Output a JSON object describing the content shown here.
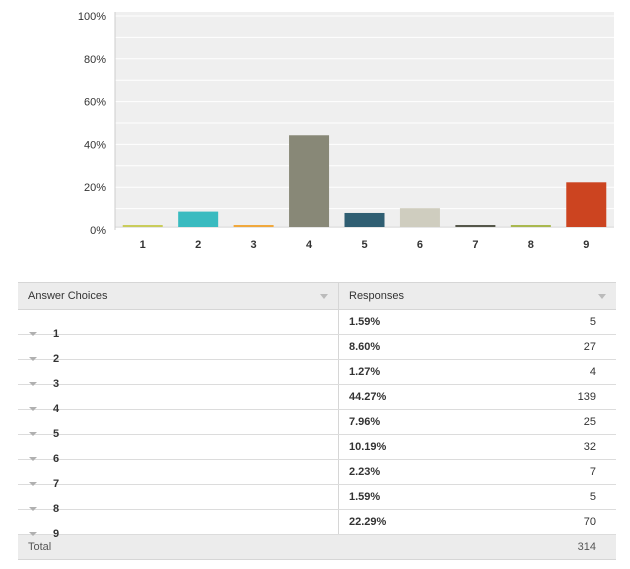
{
  "chart_data": {
    "type": "bar",
    "categories": [
      "1",
      "2",
      "3",
      "4",
      "5",
      "6",
      "7",
      "8",
      "9"
    ],
    "values": [
      1.59,
      8.6,
      1.27,
      44.27,
      7.96,
      10.19,
      2.23,
      1.59,
      22.29
    ],
    "colors": [
      "#c9cc5a",
      "#39bbc0",
      "#f0a83c",
      "#888877",
      "#2f5e72",
      "#cfcdbf",
      "#55574a",
      "#a9b84e",
      "#cc4420"
    ],
    "ylim": [
      0,
      100
    ],
    "yticks": [
      "0%",
      "20%",
      "40%",
      "60%",
      "80%",
      "100%"
    ],
    "grid": true,
    "title": "",
    "xlabel": "",
    "ylabel": ""
  },
  "table": {
    "header_choices": "Answer Choices",
    "header_responses": "Responses",
    "rows": [
      {
        "choice": "1",
        "pct": "1.59%",
        "count": "5"
      },
      {
        "choice": "2",
        "pct": "8.60%",
        "count": "27"
      },
      {
        "choice": "3",
        "pct": "1.27%",
        "count": "4"
      },
      {
        "choice": "4",
        "pct": "44.27%",
        "count": "139"
      },
      {
        "choice": "5",
        "pct": "7.96%",
        "count": "25"
      },
      {
        "choice": "6",
        "pct": "10.19%",
        "count": "32"
      },
      {
        "choice": "7",
        "pct": "2.23%",
        "count": "7"
      },
      {
        "choice": "8",
        "pct": "1.59%",
        "count": "5"
      },
      {
        "choice": "9",
        "pct": "22.29%",
        "count": "70"
      }
    ],
    "total_label": "Total",
    "total_count": "314"
  }
}
